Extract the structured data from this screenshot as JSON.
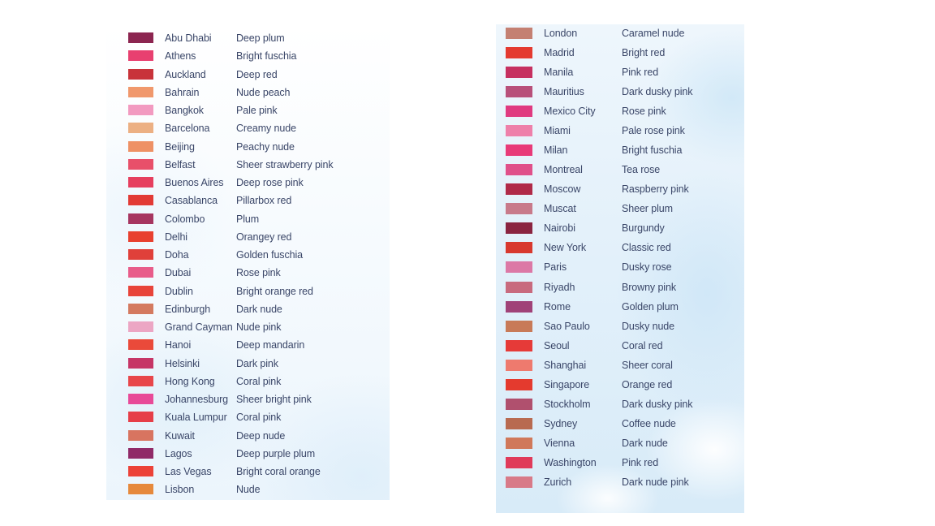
{
  "left_column": [
    {
      "city": "Abu Dhabi",
      "shade": "Deep plum",
      "color": "#8c2550"
    },
    {
      "city": "Athens",
      "shade": "Bright fuschia",
      "color": "#e84070"
    },
    {
      "city": "Auckland",
      "shade": "Deep red",
      "color": "#c8333a"
    },
    {
      "city": "Bahrain",
      "shade": "Nude peach",
      "color": "#f0986c"
    },
    {
      "city": "Bangkok",
      "shade": "Pale pink",
      "color": "#f29ac0"
    },
    {
      "city": "Barcelona",
      "shade": "Creamy nude",
      "color": "#ecb083"
    },
    {
      "city": "Beijing",
      "shade": "Peachy nude",
      "color": "#ee9165"
    },
    {
      "city": "Belfast",
      "shade": "Sheer strawberry pink",
      "color": "#e8506a"
    },
    {
      "city": "Buenos Aires",
      "shade": "Deep rose pink",
      "color": "#e63e5e"
    },
    {
      "city": "Casablanca",
      "shade": "Pillarbox red",
      "color": "#e23a35"
    },
    {
      "city": "Colombo",
      "shade": "Plum",
      "color": "#a63560"
    },
    {
      "city": "Delhi",
      "shade": "Orangey red",
      "color": "#e8402f"
    },
    {
      "city": "Doha",
      "shade": "Golden fuschia",
      "color": "#e0403a"
    },
    {
      "city": "Dubai",
      "shade": "Rose pink",
      "color": "#e85c8a"
    },
    {
      "city": "Dublin",
      "shade": "Bright orange red",
      "color": "#e8443a"
    },
    {
      "city": "Edinburgh",
      "shade": "Dark nude",
      "color": "#d47a60"
    },
    {
      "city": "Grand Cayman",
      "shade": "Nude pink",
      "color": "#eca6c4"
    },
    {
      "city": "Hanoi",
      "shade": "Deep mandarin",
      "color": "#ea4a3a"
    },
    {
      "city": "Helsinki",
      "shade": "Dark pink",
      "color": "#c63566"
    },
    {
      "city": "Hong Kong",
      "shade": "Coral pink",
      "color": "#e8464a"
    },
    {
      "city": "Johannesburg",
      "shade": "Sheer bright pink",
      "color": "#e84a98"
    },
    {
      "city": "Kuala Lumpur",
      "shade": "Coral pink",
      "color": "#e63e48"
    },
    {
      "city": "Kuwait",
      "shade": "Deep nude",
      "color": "#d87460"
    },
    {
      "city": "Lagos",
      "shade": "Deep purple plum",
      "color": "#902a68"
    },
    {
      "city": "Las Vegas",
      "shade": "Bright coral orange",
      "color": "#ec4238"
    },
    {
      "city": "Lisbon",
      "shade": "Nude",
      "color": "#e6893c"
    }
  ],
  "right_column": [
    {
      "city": "London",
      "shade": "Caramel nude",
      "color": "#c48072"
    },
    {
      "city": "Madrid",
      "shade": "Bright red",
      "color": "#e43a30"
    },
    {
      "city": "Manila",
      "shade": "Pink red",
      "color": "#c63060"
    },
    {
      "city": "Mauritius",
      "shade": "Dark dusky pink",
      "color": "#b8507a"
    },
    {
      "city": "Mexico City",
      "shade": "Rose pink",
      "color": "#e03a80"
    },
    {
      "city": "Miami",
      "shade": "Pale rose pink",
      "color": "#ee80aa"
    },
    {
      "city": "Milan",
      "shade": "Bright fuschia",
      "color": "#e83a78"
    },
    {
      "city": "Montreal",
      "shade": "Tea rose",
      "color": "#e0508a"
    },
    {
      "city": "Moscow",
      "shade": "Raspberry pink",
      "color": "#b02a48"
    },
    {
      "city": "Muscat",
      "shade": "Sheer plum",
      "color": "#c87a8a"
    },
    {
      "city": "Nairobi",
      "shade": "Burgundy",
      "color": "#8a2440"
    },
    {
      "city": "New York",
      "shade": "Classic red",
      "color": "#d8382e"
    },
    {
      "city": "Paris",
      "shade": "Dusky rose",
      "color": "#dc78a6"
    },
    {
      "city": "Riyadh",
      "shade": "Browny pink",
      "color": "#c86a7e"
    },
    {
      "city": "Rome",
      "shade": "Golden plum",
      "color": "#a04278"
    },
    {
      "city": "Sao Paulo",
      "shade": "Dusky nude",
      "color": "#c87a58"
    },
    {
      "city": "Seoul",
      "shade": "Coral red",
      "color": "#e63a38"
    },
    {
      "city": "Shanghai",
      "shade": "Sheer coral",
      "color": "#ee7a6e"
    },
    {
      "city": "Singapore",
      "shade": "Orange red",
      "color": "#e43a2e"
    },
    {
      "city": "Stockholm",
      "shade": "Dark dusky pink",
      "color": "#b0506e"
    },
    {
      "city": "Sydney",
      "shade": "Coffee nude",
      "color": "#b86a50"
    },
    {
      "city": "Vienna",
      "shade": "Dark nude",
      "color": "#d0785a"
    },
    {
      "city": "Washington",
      "shade": "Pink red",
      "color": "#e03a5a"
    },
    {
      "city": "Zurich",
      "shade": "Dark nude pink",
      "color": "#d87a88"
    }
  ]
}
